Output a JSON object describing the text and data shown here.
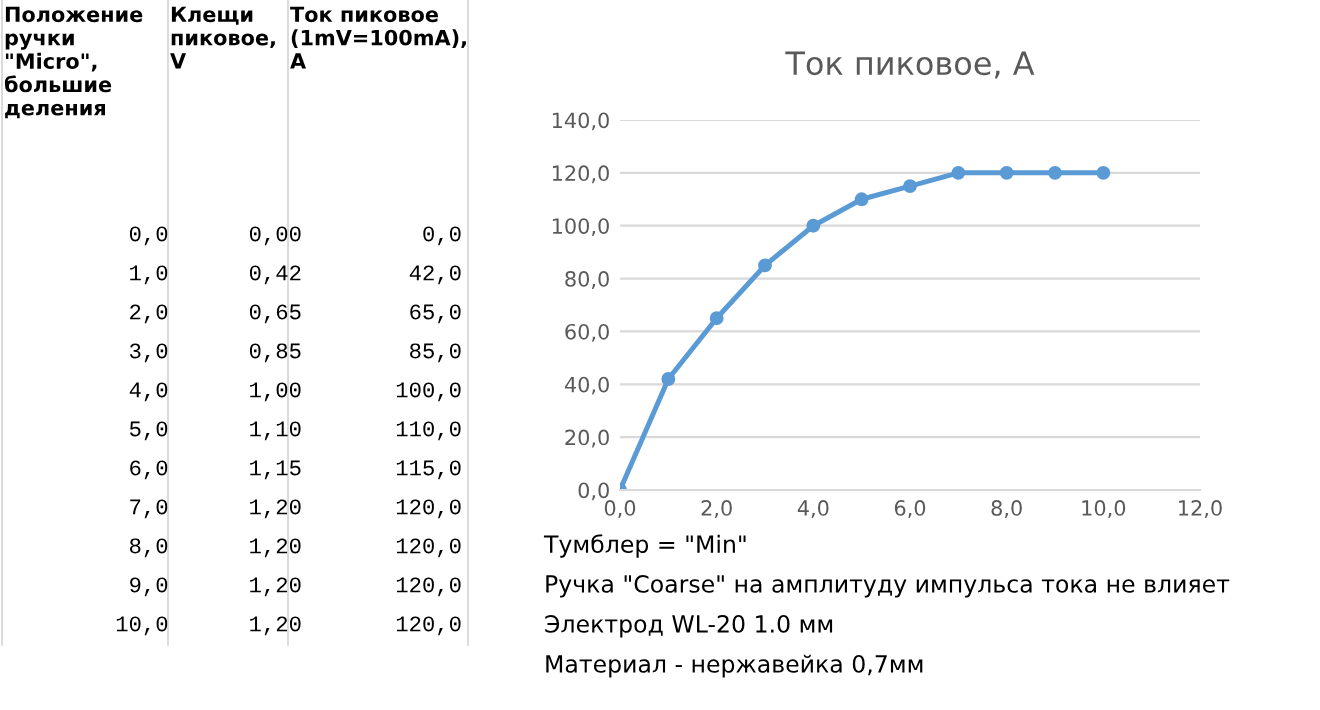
{
  "chart_data": [
    {
      "type": "other",
      "categories": [
        "Положение\nручки\n\"Micro\",\nбольшие\nделения",
        "Клещи\nпиковое,\nV",
        "Ток пиковое\n(1mV=100mA),\nA"
      ],
      "annotations": [
        "0,0",
        "0,00",
        "0,0",
        "1,0",
        "0,42",
        "42,0",
        "2,0",
        "0,65",
        "65,0",
        "3,0",
        "0,85",
        "85,0",
        "4,0",
        "1,00",
        "100,0",
        "5,0",
        "1,10",
        "110,0",
        "6,0",
        "1,15",
        "115,0",
        "7,0",
        "1,20",
        "120,0",
        "8,0",
        "1,20",
        "120,0",
        "9,0",
        "1,20",
        "120,0",
        "10,0",
        "1,20",
        "120,0"
      ]
    },
    {
      "type": "line",
      "title": "Ток пиковое, А",
      "x": [
        0,
        1,
        2,
        3,
        4,
        5,
        6,
        7,
        8,
        9,
        10
      ],
      "series": [
        {
          "color": "#5b9bd5",
          "values": [
            0,
            42,
            65,
            85,
            100,
            110,
            115,
            120,
            120,
            120,
            120
          ]
        }
      ],
      "xlim": [
        0,
        12
      ],
      "xticks": [
        {
          "value": 0,
          "label": "0,0"
        },
        {
          "value": 2,
          "label": "2,0"
        },
        {
          "value": 4,
          "label": "4,0"
        },
        {
          "value": 6,
          "label": "6,0"
        },
        {
          "value": 8,
          "label": "8,0"
        },
        {
          "value": 10,
          "label": "10,0"
        },
        {
          "value": 12,
          "label": "12,0"
        }
      ],
      "ylim": [
        0,
        140
      ],
      "yticks": [
        {
          "value": 0,
          "label": "0,0"
        },
        {
          "value": 20,
          "label": "20,0"
        },
        {
          "value": 40,
          "label": "40,0"
        },
        {
          "value": 60,
          "label": "60,0"
        },
        {
          "value": 80,
          "label": "80,0"
        },
        {
          "value": 100,
          "label": "100,0"
        },
        {
          "value": 120,
          "label": "120,0"
        },
        {
          "value": 140,
          "label": "140,0"
        }
      ],
      "grid": "y",
      "marker": "circle",
      "line_style": "solid",
      "legend": false,
      "annotations": [
        "Тумблер = \"Min\"",
        "Ручка \"Coarse\" на амплитуду импульса тока не влияет",
        "Электрод WL-20 1.0 мм",
        "Материал - нержавейка 0,7мм"
      ]
    }
  ]
}
